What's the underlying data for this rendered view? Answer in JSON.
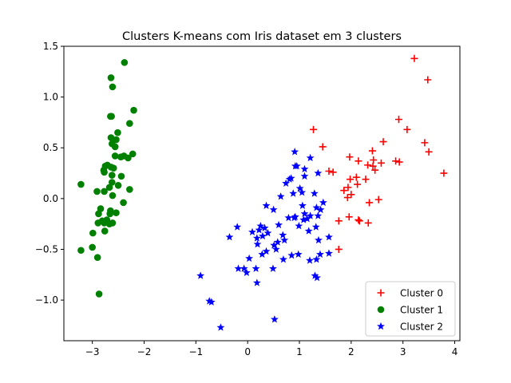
{
  "chart_data": {
    "type": "scatter",
    "title": "Clusters K-means com Iris dataset em 3 clusters",
    "xlabel": "",
    "ylabel": "",
    "xlim": [
      -3.55,
      4.1
    ],
    "ylim": [
      -1.4,
      1.5
    ],
    "xticks": [
      -3,
      -2,
      -1,
      0,
      1,
      2,
      3,
      4
    ],
    "yticks": [
      -1.0,
      -0.5,
      0.0,
      0.5,
      1.0,
      1.5
    ],
    "xtick_labels": [
      "−3",
      "−2",
      "−1",
      "0",
      "1",
      "2",
      "3",
      "4"
    ],
    "ytick_labels": [
      "−1.0",
      "−0.5",
      "0.0",
      "0.5",
      "1.0",
      "1.5"
    ],
    "grid": false,
    "legend_position": "lower-right",
    "series": [
      {
        "name": "Cluster 0",
        "color": "#ff0000",
        "marker": "plus",
        "points": [
          [
            3.22,
            1.38
          ],
          [
            3.48,
            1.17
          ],
          [
            2.92,
            0.78
          ],
          [
            3.08,
            0.68
          ],
          [
            1.27,
            0.68
          ],
          [
            2.62,
            0.56
          ],
          [
            3.42,
            0.55
          ],
          [
            2.41,
            0.47
          ],
          [
            3.5,
            0.46
          ],
          [
            1.45,
            0.51
          ],
          [
            1.97,
            0.41
          ],
          [
            2.14,
            0.37
          ],
          [
            2.43,
            0.38
          ],
          [
            2.32,
            0.33
          ],
          [
            2.42,
            0.32
          ],
          [
            2.58,
            0.35
          ],
          [
            2.86,
            0.37
          ],
          [
            2.93,
            0.36
          ],
          [
            1.57,
            0.27
          ],
          [
            1.65,
            0.26
          ],
          [
            2.46,
            0.28
          ],
          [
            3.79,
            0.25
          ],
          [
            2.1,
            0.21
          ],
          [
            2.28,
            0.19
          ],
          [
            1.98,
            0.19
          ],
          [
            2.12,
            0.14
          ],
          [
            1.94,
            0.11
          ],
          [
            1.86,
            0.08
          ],
          [
            2.0,
            0.04
          ],
          [
            1.93,
            0.01
          ],
          [
            2.53,
            -0.01
          ],
          [
            2.35,
            -0.04
          ],
          [
            1.96,
            -0.18
          ],
          [
            1.76,
            -0.22
          ],
          [
            2.14,
            -0.21
          ],
          [
            2.16,
            -0.22
          ],
          [
            2.33,
            -0.24
          ],
          [
            1.76,
            -0.5
          ]
        ]
      },
      {
        "name": "Cluster 1",
        "color": "#008000",
        "marker": "circle",
        "points": [
          [
            -2.38,
            1.34
          ],
          [
            -2.64,
            1.19
          ],
          [
            -2.61,
            1.1
          ],
          [
            -2.2,
            0.87
          ],
          [
            -2.63,
            0.81
          ],
          [
            -2.65,
            0.81
          ],
          [
            -2.28,
            0.74
          ],
          [
            -2.51,
            0.65
          ],
          [
            -2.64,
            0.6
          ],
          [
            -2.54,
            0.58
          ],
          [
            -2.62,
            0.54
          ],
          [
            -2.56,
            0.51
          ],
          [
            -2.45,
            0.41
          ],
          [
            -2.39,
            0.42
          ],
          [
            -2.22,
            0.44
          ],
          [
            -2.31,
            0.4
          ],
          [
            -2.56,
            0.42
          ],
          [
            -2.71,
            0.33
          ],
          [
            -2.75,
            0.32
          ],
          [
            -2.64,
            0.31
          ],
          [
            -2.59,
            0.3
          ],
          [
            -2.77,
            0.26
          ],
          [
            -2.78,
            0.28
          ],
          [
            -2.62,
            0.23
          ],
          [
            -2.44,
            0.22
          ],
          [
            -3.22,
            0.14
          ],
          [
            -2.5,
            0.13
          ],
          [
            -2.62,
            0.16
          ],
          [
            -2.67,
            0.11
          ],
          [
            -2.28,
            0.09
          ],
          [
            -2.91,
            0.07
          ],
          [
            -2.77,
            0.07
          ],
          [
            -2.61,
            0.03
          ],
          [
            -2.4,
            -0.04
          ],
          [
            -2.84,
            -0.1
          ],
          [
            -2.65,
            -0.12
          ],
          [
            -2.54,
            -0.14
          ],
          [
            -2.88,
            -0.15
          ],
          [
            -2.66,
            -0.15
          ],
          [
            -2.81,
            -0.22
          ],
          [
            -2.72,
            -0.21
          ],
          [
            -2.77,
            -0.24
          ],
          [
            -2.61,
            -0.24
          ],
          [
            -2.67,
            -0.25
          ],
          [
            -2.89,
            -0.24
          ],
          [
            -2.76,
            -0.32
          ],
          [
            -2.99,
            -0.34
          ],
          [
            -3.0,
            -0.48
          ],
          [
            -3.22,
            -0.51
          ],
          [
            -2.9,
            -0.58
          ],
          [
            -2.87,
            -0.94
          ]
        ]
      },
      {
        "name": "Cluster 2",
        "color": "#0000ff",
        "marker": "star",
        "points": [
          [
            0.91,
            0.46
          ],
          [
            1.21,
            0.4
          ],
          [
            1.1,
            0.29
          ],
          [
            0.92,
            0.32
          ],
          [
            0.95,
            0.32
          ],
          [
            0.84,
            0.2
          ],
          [
            0.74,
            0.15
          ],
          [
            1.1,
            0.22
          ],
          [
            1.36,
            0.25
          ],
          [
            0.81,
            0.19
          ],
          [
            0.64,
            0.02
          ],
          [
            1.05,
            0.06
          ],
          [
            0.88,
            0.05
          ],
          [
            1.01,
            0.1
          ],
          [
            1.29,
            0.05
          ],
          [
            1.06,
            -0.07
          ],
          [
            1.46,
            -0.04
          ],
          [
            1.1,
            -0.15
          ],
          [
            1.33,
            -0.09
          ],
          [
            1.21,
            -0.17
          ],
          [
            1.15,
            -0.2
          ],
          [
            1.36,
            -0.17
          ],
          [
            1.41,
            -0.11
          ],
          [
            1.32,
            -0.28
          ],
          [
            0.9,
            -0.19
          ],
          [
            0.79,
            -0.19
          ],
          [
            1.08,
            -0.21
          ],
          [
            0.99,
            -0.27
          ],
          [
            1.18,
            -0.32
          ],
          [
            0.92,
            -0.18
          ],
          [
            0.5,
            -0.11
          ],
          [
            0.36,
            -0.07
          ],
          [
            0.25,
            -0.27
          ],
          [
            0.6,
            -0.26
          ],
          [
            0.33,
            -0.29
          ],
          [
            0.39,
            -0.34
          ],
          [
            0.29,
            -0.37
          ],
          [
            0.22,
            -0.31
          ],
          [
            0.09,
            -0.33
          ],
          [
            0.68,
            -0.36
          ],
          [
            0.71,
            -0.41
          ],
          [
            0.58,
            -0.43
          ],
          [
            0.51,
            -0.46
          ],
          [
            0.18,
            -0.39
          ],
          [
            0.19,
            -0.45
          ],
          [
            0.28,
            -0.55
          ],
          [
            0.36,
            -0.52
          ],
          [
            0.55,
            -0.5
          ],
          [
            0.69,
            -0.6
          ],
          [
            0.85,
            -0.56
          ],
          [
            1.37,
            -0.41
          ],
          [
            1.4,
            -0.55
          ],
          [
            1.57,
            -0.54
          ],
          [
            1.57,
            -0.38
          ],
          [
            1.33,
            -0.6
          ],
          [
            1.2,
            -0.61
          ],
          [
            0.98,
            -0.55
          ],
          [
            0.49,
            -0.69
          ],
          [
            0.16,
            -0.69
          ],
          [
            0.03,
            -0.59
          ],
          [
            -0.2,
            -0.28
          ],
          [
            -0.35,
            -0.38
          ],
          [
            -0.07,
            -0.69
          ],
          [
            -0.18,
            -0.69
          ],
          [
            -0.02,
            -0.73
          ],
          [
            0.18,
            -0.83
          ],
          [
            1.3,
            -0.76
          ],
          [
            1.34,
            -0.78
          ],
          [
            -0.91,
            -0.76
          ],
          [
            -0.74,
            -1.01
          ],
          [
            -0.7,
            -1.02
          ],
          [
            -0.52,
            -1.27
          ],
          [
            0.52,
            -1.19
          ]
        ]
      }
    ]
  }
}
